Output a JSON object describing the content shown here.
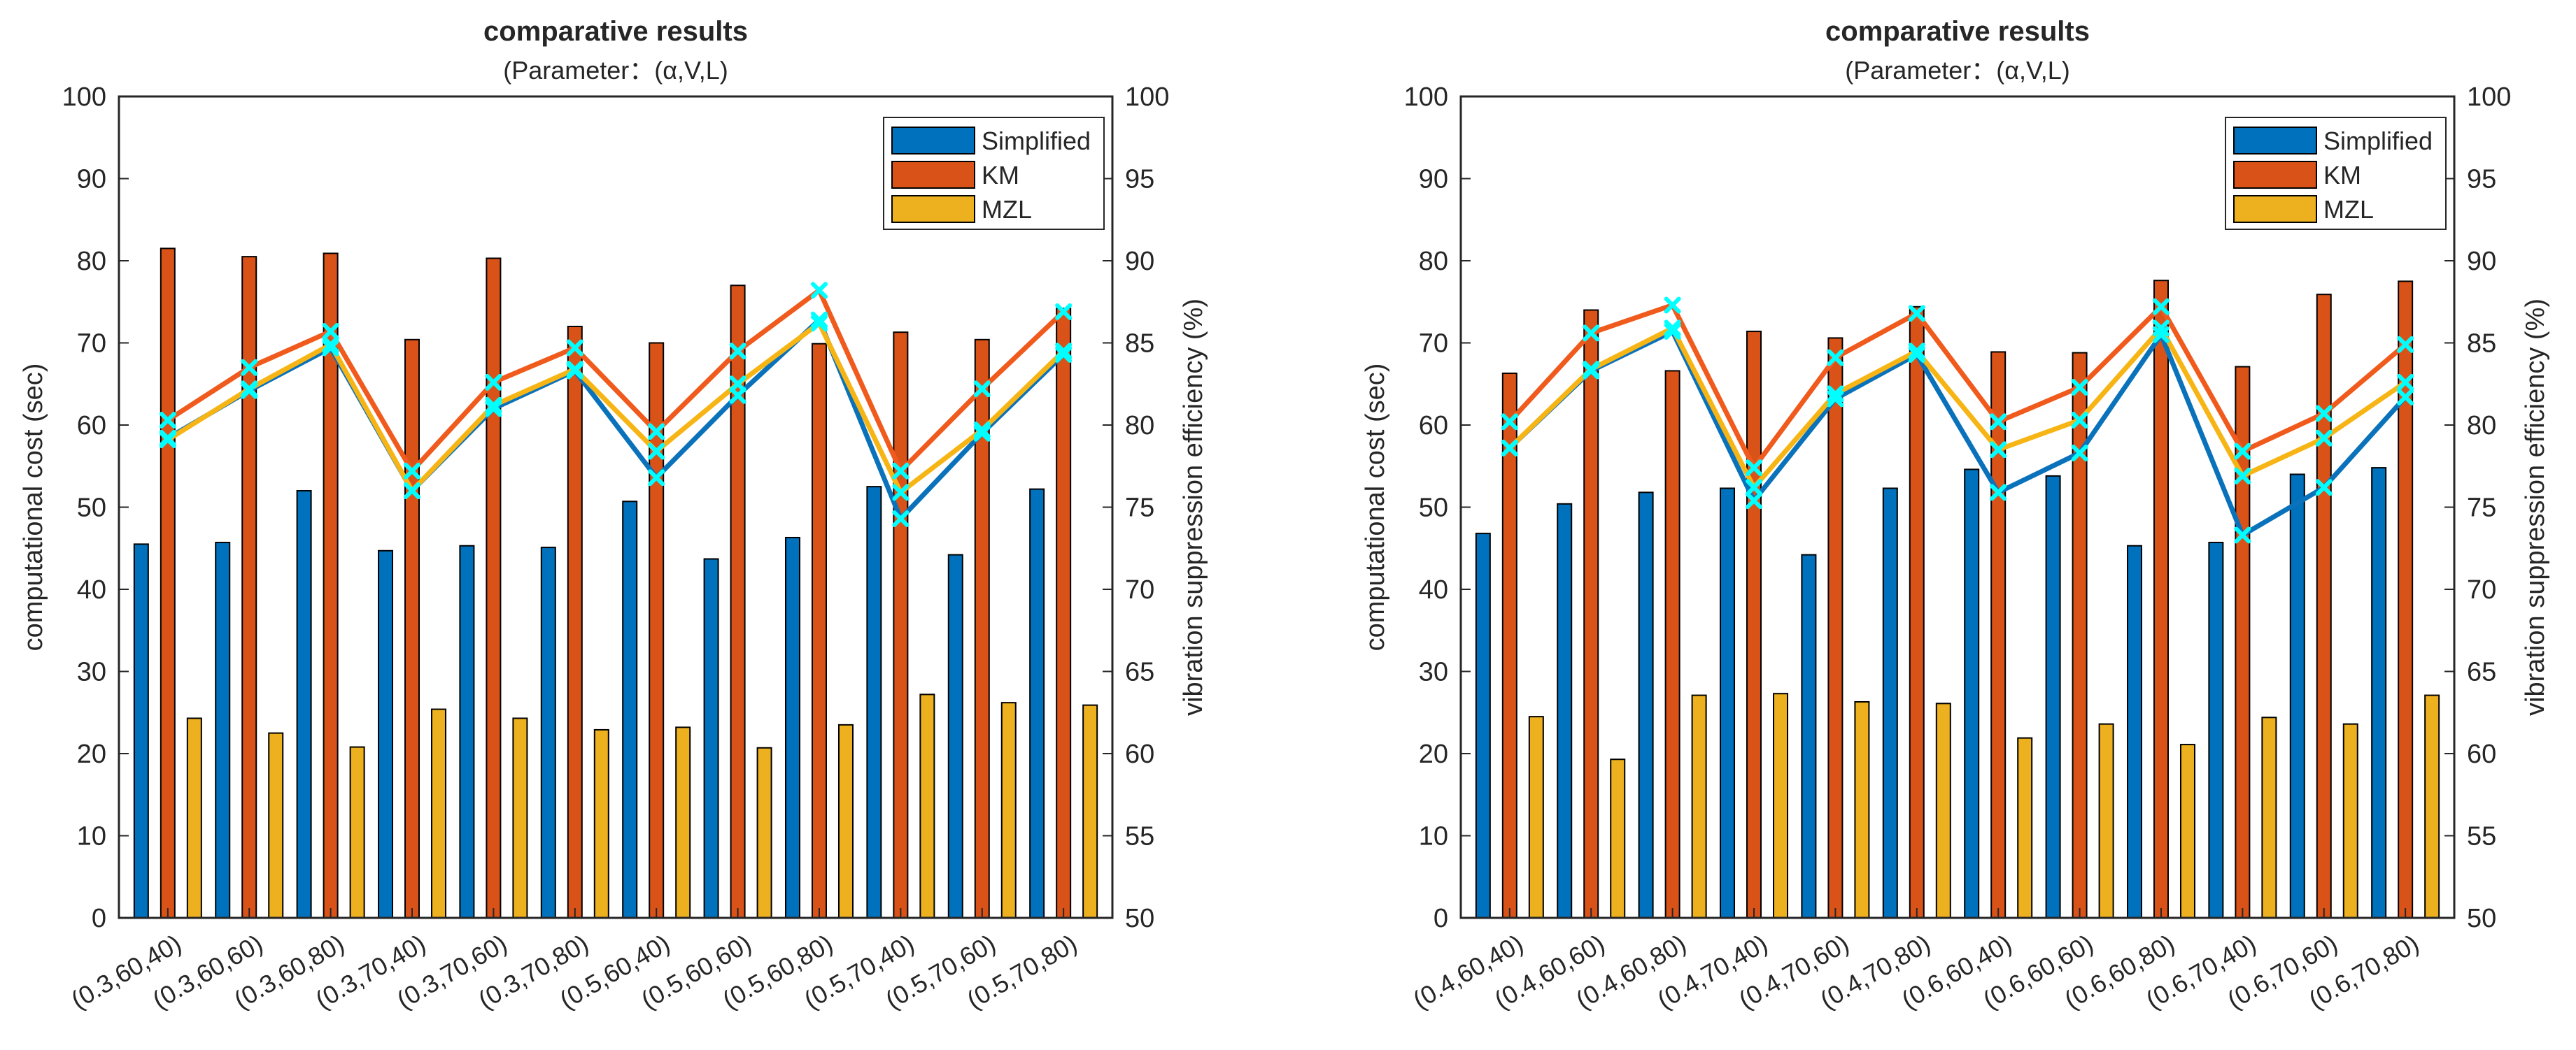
{
  "colors": {
    "simplified": "#0072BD",
    "km": "#D95319",
    "mzl": "#EDB120",
    "marker": "#00FFFF"
  },
  "chart_data": [
    {
      "type": "bar",
      "title": "comparative results",
      "subtitle": "(Parameter：(α,V,L)",
      "ylabel": "computational cost (sec)",
      "ylabel_right": "vibration suppression efficiency (%)",
      "ylim": [
        0,
        100
      ],
      "ylim_right": [
        50,
        100
      ],
      "yticks": [
        "0",
        "10",
        "20",
        "30",
        "40",
        "50",
        "60",
        "70",
        "80",
        "90",
        "100"
      ],
      "yticks_right": [
        "50",
        "55",
        "60",
        "65",
        "70",
        "75",
        "80",
        "85",
        "90",
        "95",
        "100"
      ],
      "legend_position": "top-right",
      "categories": [
        "(0.3,60,40)",
        "(0.3,60,60)",
        "(0.3,60,80)",
        "(0.3,70,40)",
        "(0.3,70,60)",
        "(0.3,70,80)",
        "(0.5,60,40)",
        "(0.5,60,60)",
        "(0.5,60,80)",
        "(0.5,70,40)",
        "(0.5,70,60)",
        "(0.5,70,80)"
      ],
      "series": [
        {
          "name": "Simplified",
          "values": [
            45.5,
            45.7,
            52.0,
            44.7,
            45.3,
            45.1,
            50.7,
            43.7,
            46.3,
            52.5,
            44.2,
            52.2
          ]
        },
        {
          "name": "KM",
          "values": [
            81.5,
            80.5,
            80.9,
            70.4,
            80.3,
            72.0,
            70.0,
            77.0,
            69.9,
            71.3,
            70.4,
            74.2
          ]
        },
        {
          "name": "MZL",
          "values": [
            24.3,
            22.5,
            20.8,
            25.4,
            24.3,
            22.9,
            23.2,
            20.7,
            23.5,
            27.2,
            26.2,
            25.9
          ]
        }
      ],
      "line_series": [
        {
          "name": "Simplified",
          "values": [
            79.2,
            82.1,
            84.7,
            76.0,
            81.0,
            83.3,
            76.8,
            81.8,
            86.4,
            74.3,
            79.5,
            84.3
          ]
        },
        {
          "name": "KM",
          "values": [
            80.3,
            83.5,
            85.7,
            77.2,
            82.6,
            84.7,
            79.6,
            84.5,
            88.2,
            77.2,
            82.2,
            86.9
          ]
        },
        {
          "name": "MZL",
          "values": [
            79.1,
            82.2,
            84.9,
            76.0,
            81.2,
            83.4,
            78.4,
            82.5,
            86.2,
            75.9,
            79.7,
            84.5
          ]
        }
      ]
    },
    {
      "type": "bar",
      "title": "comparative results",
      "subtitle": "(Parameter：(α,V,L)",
      "ylabel": "computational cost (sec)",
      "ylabel_right": "vibration suppression efficiency (%)",
      "ylim": [
        0,
        100
      ],
      "ylim_right": [
        50,
        100
      ],
      "yticks": [
        "0",
        "10",
        "20",
        "30",
        "40",
        "50",
        "60",
        "70",
        "80",
        "90",
        "100"
      ],
      "yticks_right": [
        "50",
        "55",
        "60",
        "65",
        "70",
        "75",
        "80",
        "85",
        "90",
        "95",
        "100"
      ],
      "legend_position": "top-right",
      "categories": [
        "(0.4,60,40)",
        "(0.4,60,60)",
        "(0.4,60,80)",
        "(0.4,70,40)",
        "(0.4,70,60)",
        "(0.4,70,80)",
        "(0.6,60,40)",
        "(0.6,60,60)",
        "(0.6,60,80)",
        "(0.6,70,40)",
        "(0.6,70,60)",
        "(0.6,70,80)"
      ],
      "series": [
        {
          "name": "Simplified",
          "values": [
            46.8,
            50.4,
            51.8,
            52.3,
            44.2,
            52.3,
            54.6,
            53.8,
            45.3,
            45.7,
            54.0,
            54.8
          ]
        },
        {
          "name": "KM",
          "values": [
            66.3,
            74.0,
            66.6,
            71.4,
            70.6,
            74.4,
            68.9,
            68.8,
            77.6,
            67.1,
            75.9,
            77.5
          ]
        },
        {
          "name": "MZL",
          "values": [
            24.5,
            19.3,
            27.1,
            27.3,
            26.3,
            26.1,
            21.9,
            23.6,
            21.1,
            24.4,
            23.6,
            27.1
          ]
        }
      ],
      "line_series": [
        {
          "name": "Simplified",
          "values": [
            78.6,
            83.3,
            85.7,
            75.4,
            81.6,
            84.3,
            75.9,
            78.3,
            85.5,
            73.3,
            76.2,
            81.7
          ]
        },
        {
          "name": "KM",
          "values": [
            80.2,
            85.6,
            87.3,
            77.4,
            84.1,
            86.8,
            80.2,
            82.3,
            87.2,
            78.4,
            80.7,
            84.9
          ]
        },
        {
          "name": "MZL",
          "values": [
            78.6,
            83.4,
            85.9,
            76.2,
            81.9,
            84.5,
            78.5,
            80.3,
            85.9,
            76.9,
            79.2,
            82.6
          ]
        }
      ]
    }
  ]
}
